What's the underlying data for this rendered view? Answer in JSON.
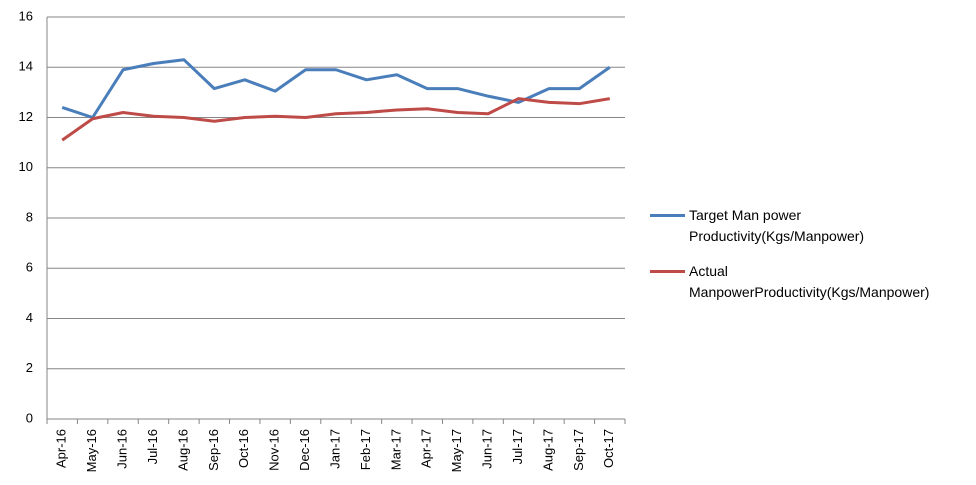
{
  "chart_data": {
    "type": "line",
    "categories": [
      "Apr-16",
      "May-16",
      "Jun-16",
      "Jul-16",
      "Aug-16",
      "Sep-16",
      "Oct-16",
      "Nov-16",
      "Dec-16",
      "Jan-17",
      "Feb-17",
      "Mar-17",
      "Apr-17",
      "May-17",
      "Jun-17",
      "Jul-17",
      "Aug-17",
      "Sep-17",
      "Oct-17"
    ],
    "series": [
      {
        "name": "Target Man power Productivity(Kgs/Manpower)",
        "color": "#4a7ebb",
        "values": [
          12.4,
          12.0,
          13.9,
          14.15,
          14.3,
          13.15,
          13.5,
          13.05,
          13.9,
          13.9,
          13.5,
          13.7,
          13.15,
          13.15,
          12.85,
          12.6,
          13.15,
          13.15,
          14.0
        ]
      },
      {
        "name": "Actual ManpowerProductivity(Kgs/Manpower)",
        "color": "#be4b48",
        "values": [
          11.1,
          11.95,
          12.2,
          12.05,
          12.0,
          11.85,
          12.0,
          12.05,
          12.0,
          12.15,
          12.2,
          12.3,
          12.35,
          12.2,
          12.15,
          12.75,
          12.6,
          12.55,
          12.75
        ]
      }
    ],
    "ylim": [
      0,
      16
    ],
    "yticks": [
      0,
      2,
      4,
      6,
      8,
      10,
      12,
      14,
      16
    ],
    "grid": true,
    "legend": "right"
  }
}
